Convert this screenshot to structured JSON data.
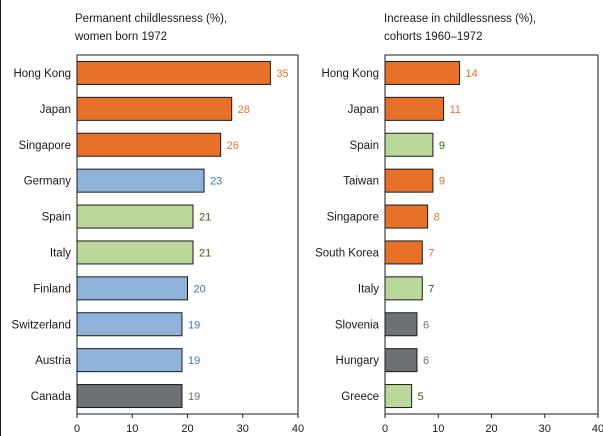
{
  "colors": {
    "east_asia": "#e8712a",
    "western_europe": "#8fb2da",
    "southern_europe": "#b9d89a",
    "other": "#6d7175",
    "east_asia_label": "#e8712a",
    "western_europe_label": "#3f78b4",
    "southern_europe_label": "#3c5a1a",
    "other_label": "#6d7175",
    "bar_border": "#1a1a1a"
  },
  "chart_data": [
    {
      "type": "bar",
      "orientation": "horizontal",
      "title_lines": [
        "Permanent childlessness (%),",
        "women born 1972"
      ],
      "xlim": [
        0,
        40
      ],
      "xticks": [
        "0",
        "10",
        "20",
        "30",
        "40"
      ],
      "grid": false,
      "categories": [
        "Hong Kong",
        "Japan",
        "Singapore",
        "Germany",
        "Spain",
        "Italy",
        "Finland",
        "Switzerland",
        "Austria",
        "Canada"
      ],
      "values": [
        35,
        28,
        26,
        23,
        21,
        21,
        20,
        19,
        19,
        19
      ],
      "value_labels": [
        "35",
        "28",
        "26",
        "23",
        "21",
        "21",
        "20",
        "19",
        "19",
        "19"
      ],
      "groups": [
        "east_asia",
        "east_asia",
        "east_asia",
        "western_europe",
        "southern_europe",
        "southern_europe",
        "western_europe",
        "western_europe",
        "western_europe",
        "other"
      ]
    },
    {
      "type": "bar",
      "orientation": "horizontal",
      "title_lines": [
        "Increase in childlessness (%),",
        "cohorts 1960–1972"
      ],
      "xlim": [
        0,
        40
      ],
      "xticks": [
        "0",
        "10",
        "20",
        "30",
        "40"
      ],
      "grid": false,
      "categories": [
        "Hong Kong",
        "Japan",
        "Spain",
        "Taiwan",
        "Singapore",
        "South Korea",
        "Italy",
        "Slovenia",
        "Hungary",
        "Greece"
      ],
      "values": [
        14,
        11,
        9,
        9,
        8,
        7,
        7,
        6,
        6,
        5
      ],
      "value_labels": [
        "14",
        "11",
        "9",
        "9",
        "8",
        "7",
        "7",
        "6",
        "6",
        "5"
      ],
      "groups": [
        "east_asia",
        "east_asia",
        "southern_europe",
        "east_asia",
        "east_asia",
        "east_asia",
        "southern_europe",
        "other",
        "other",
        "southern_europe"
      ]
    }
  ]
}
